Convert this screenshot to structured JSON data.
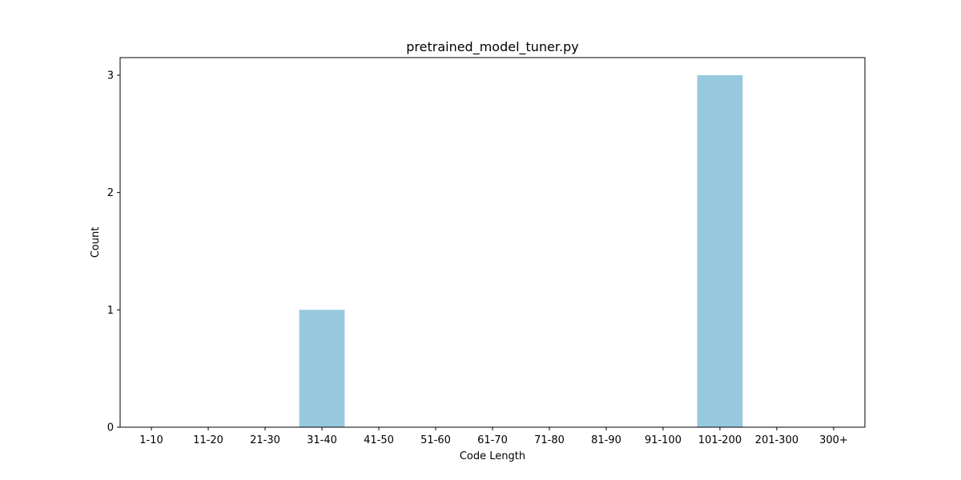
{
  "chart_data": {
    "type": "bar",
    "title": "pretrained_model_tuner.py",
    "xlabel": "Code Length",
    "ylabel": "Count",
    "categories": [
      "1-10",
      "11-20",
      "21-30",
      "31-40",
      "41-50",
      "51-60",
      "61-70",
      "71-80",
      "81-90",
      "91-100",
      "101-200",
      "201-300",
      "300+"
    ],
    "values": [
      0,
      0,
      0,
      1,
      0,
      0,
      0,
      0,
      0,
      0,
      3,
      0,
      0
    ],
    "ylim": [
      0,
      3.15
    ],
    "yticks": [
      0,
      1,
      2,
      3
    ],
    "bar_color": "#96c9de",
    "grid": false,
    "legend": "none"
  }
}
